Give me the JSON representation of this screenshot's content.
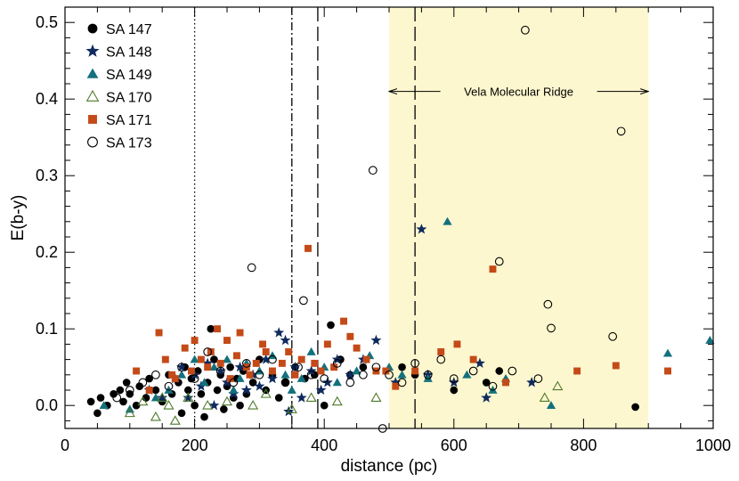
{
  "chart_data": {
    "type": "scatter",
    "xlabel": "distance (pc)",
    "ylabel": "E(b-y)",
    "xlim": [
      0,
      1000
    ],
    "ylim": [
      -0.03,
      0.52
    ],
    "xticks": [
      0,
      200,
      400,
      600,
      800,
      1000
    ],
    "yticks": [
      0.0,
      0.1,
      0.2,
      0.3,
      0.4,
      0.5
    ],
    "xtick_labels": [
      "0",
      "200",
      "400",
      "600",
      "800",
      "1000"
    ],
    "ytick_labels": [
      "0.0",
      "0.1",
      "0.2",
      "0.3",
      "0.4",
      "0.5"
    ],
    "legend_position": "top-left",
    "shaded_region": {
      "x": [
        500,
        900
      ],
      "color": "#fdf7cf"
    },
    "annotation": {
      "text": "Vela Molecular Ridge",
      "x_range": [
        500,
        900
      ],
      "y": 0.41
    },
    "vertical_lines": [
      {
        "x": 200,
        "style": "dotted"
      },
      {
        "x": 350,
        "style": "dashdot"
      },
      {
        "x": 390,
        "style": "longdash"
      },
      {
        "x": 540,
        "style": "longdash"
      }
    ],
    "series": [
      {
        "name": "SA 147",
        "marker": "circle-filled",
        "color": "#000000",
        "points": [
          [
            40,
            0.005
          ],
          [
            50,
            -0.01
          ],
          [
            55,
            0.01
          ],
          [
            65,
            0.0
          ],
          [
            75,
            0.015
          ],
          [
            85,
            0.02
          ],
          [
            90,
            0.005
          ],
          [
            95,
            0.03
          ],
          [
            100,
            0.015
          ],
          [
            110,
            0.0
          ],
          [
            115,
            0.025
          ],
          [
            125,
            0.01
          ],
          [
            130,
            0.035
          ],
          [
            140,
            0.02
          ],
          [
            150,
            0.005
          ],
          [
            160,
            0.04
          ],
          [
            165,
            0.015
          ],
          [
            175,
            0.03
          ],
          [
            180,
            -0.01
          ],
          [
            185,
            0.05
          ],
          [
            190,
            0.02
          ],
          [
            195,
            0.035
          ],
          [
            200,
            0.0
          ],
          [
            205,
            0.045
          ],
          [
            210,
            0.015
          ],
          [
            215,
            -0.015
          ],
          [
            220,
            0.03
          ],
          [
            225,
            0.1
          ],
          [
            230,
            0.06
          ],
          [
            235,
            0.02
          ],
          [
            240,
            0.04
          ],
          [
            245,
            -0.005
          ],
          [
            250,
            0.025
          ],
          [
            255,
            0.05
          ],
          [
            260,
            0.01
          ],
          [
            265,
            0.035
          ],
          [
            270,
            0.0
          ],
          [
            275,
            0.045
          ],
          [
            280,
            0.015
          ],
          [
            290,
            0.03
          ],
          [
            300,
            0.06
          ],
          [
            310,
            0.02
          ],
          [
            320,
            0.04
          ],
          [
            330,
            0.01
          ],
          [
            340,
            0.03
          ],
          [
            355,
            0.05
          ],
          [
            370,
            0.035
          ],
          [
            385,
            0.04
          ],
          [
            400,
            0.0
          ],
          [
            410,
            0.105
          ],
          [
            425,
            0.06
          ],
          [
            440,
            0.04
          ],
          [
            460,
            0.05
          ],
          [
            520,
            0.05
          ],
          [
            540,
            0.04
          ],
          [
            600,
            0.02
          ],
          [
            650,
            0.03
          ],
          [
            670,
            0.045
          ],
          [
            880,
            -0.002
          ]
        ]
      },
      {
        "name": "SA 148",
        "marker": "star-filled",
        "color": "#0e2a5e",
        "points": [
          [
            130,
            0.02
          ],
          [
            150,
            0.01
          ],
          [
            170,
            0.035
          ],
          [
            180,
            0.05
          ],
          [
            190,
            0.01
          ],
          [
            200,
            0.04
          ],
          [
            210,
            0.025
          ],
          [
            220,
            0.055
          ],
          [
            230,
            0.0
          ],
          [
            240,
            0.045
          ],
          [
            250,
            0.03
          ],
          [
            260,
            0.015
          ],
          [
            270,
            0.05
          ],
          [
            280,
            0.02
          ],
          [
            290,
            0.04
          ],
          [
            300,
            0.025
          ],
          [
            310,
            0.06
          ],
          [
            320,
            0.035
          ],
          [
            330,
            0.095
          ],
          [
            340,
            0.085
          ],
          [
            345,
            -0.008
          ],
          [
            355,
            0.05
          ],
          [
            365,
            0.01
          ],
          [
            380,
            0.045
          ],
          [
            395,
            0.02
          ],
          [
            405,
            0.03
          ],
          [
            420,
            0.06
          ],
          [
            440,
            0.04
          ],
          [
            460,
            0.06
          ],
          [
            480,
            0.085
          ],
          [
            510,
            0.03
          ],
          [
            550,
            0.23
          ],
          [
            560,
            0.04
          ],
          [
            600,
            0.03
          ],
          [
            640,
            0.055
          ],
          [
            650,
            0.01
          ],
          [
            720,
            0.03
          ]
        ]
      },
      {
        "name": "SA 149",
        "marker": "triangle-filled",
        "color": "#13717d",
        "points": [
          [
            60,
            0.0
          ],
          [
            100,
            -0.005
          ],
          [
            140,
            0.01
          ],
          [
            160,
            0.02
          ],
          [
            180,
            0.04
          ],
          [
            200,
            0.06
          ],
          [
            215,
            0.03
          ],
          [
            230,
            0.05
          ],
          [
            250,
            0.06
          ],
          [
            260,
            0.02
          ],
          [
            270,
            0.035
          ],
          [
            280,
            0.055
          ],
          [
            300,
            0.045
          ],
          [
            320,
            0.065
          ],
          [
            340,
            0.04
          ],
          [
            350,
            0.02
          ],
          [
            365,
            0.035
          ],
          [
            380,
            0.07
          ],
          [
            400,
            0.05
          ],
          [
            420,
            0.03
          ],
          [
            450,
            0.045
          ],
          [
            470,
            0.065
          ],
          [
            500,
            0.05
          ],
          [
            520,
            0.04
          ],
          [
            560,
            0.035
          ],
          [
            590,
            0.24
          ],
          [
            620,
            0.04
          ],
          [
            660,
            0.02
          ],
          [
            680,
            0.035
          ],
          [
            750,
            0.0
          ],
          [
            930,
            0.068
          ],
          [
            995,
            0.085
          ]
        ]
      },
      {
        "name": "SA 170",
        "marker": "triangle-open",
        "color": "#4f7a2b",
        "points": [
          [
            100,
            -0.01
          ],
          [
            120,
            0.005
          ],
          [
            140,
            -0.015
          ],
          [
            150,
            0.01
          ],
          [
            160,
            0.0
          ],
          [
            170,
            -0.02
          ],
          [
            190,
            0.01
          ],
          [
            220,
            0.0
          ],
          [
            250,
            0.005
          ],
          [
            290,
            0.0
          ],
          [
            310,
            0.015
          ],
          [
            350,
            -0.005
          ],
          [
            380,
            0.01
          ],
          [
            420,
            0.005
          ],
          [
            480,
            0.01
          ],
          [
            740,
            0.01
          ],
          [
            760,
            0.025
          ]
        ]
      },
      {
        "name": "SA 171",
        "marker": "square-filled",
        "color": "#c44a18",
        "points": [
          [
            110,
            0.045
          ],
          [
            130,
            0.02
          ],
          [
            145,
            0.095
          ],
          [
            155,
            0.06
          ],
          [
            165,
            0.04
          ],
          [
            170,
            0.035
          ],
          [
            185,
            0.075
          ],
          [
            195,
            0.045
          ],
          [
            200,
            0.085
          ],
          [
            210,
            0.06
          ],
          [
            220,
            0.05
          ],
          [
            225,
            0.07
          ],
          [
            235,
            0.1
          ],
          [
            240,
            0.055
          ],
          [
            250,
            0.085
          ],
          [
            255,
            0.035
          ],
          [
            265,
            0.065
          ],
          [
            270,
            0.095
          ],
          [
            280,
            0.05
          ],
          [
            285,
            0.04
          ],
          [
            295,
            0.055
          ],
          [
            305,
            0.08
          ],
          [
            310,
            0.07
          ],
          [
            320,
            0.045
          ],
          [
            335,
            0.055
          ],
          [
            345,
            0.07
          ],
          [
            355,
            0.04
          ],
          [
            365,
            0.06
          ],
          [
            375,
            0.205
          ],
          [
            385,
            0.055
          ],
          [
            395,
            0.045
          ],
          [
            405,
            0.08
          ],
          [
            415,
            0.05
          ],
          [
            430,
            0.11
          ],
          [
            440,
            0.09
          ],
          [
            450,
            0.075
          ],
          [
            465,
            0.06
          ],
          [
            480,
            0.045
          ],
          [
            495,
            0.045
          ],
          [
            510,
            0.025
          ],
          [
            540,
            0.045
          ],
          [
            580,
            0.07
          ],
          [
            605,
            0.08
          ],
          [
            630,
            0.06
          ],
          [
            660,
            0.178
          ],
          [
            680,
            0.03
          ],
          [
            790,
            0.045
          ],
          [
            850,
            0.052
          ],
          [
            930,
            0.045
          ]
        ]
      },
      {
        "name": "SA 173",
        "marker": "circle-open",
        "color": "#000000",
        "points": [
          [
            80,
            0.01
          ],
          [
            100,
            0.02
          ],
          [
            120,
            0.03
          ],
          [
            140,
            0.04
          ],
          [
            160,
            0.025
          ],
          [
            180,
            0.05
          ],
          [
            200,
            0.035
          ],
          [
            220,
            0.07
          ],
          [
            240,
            0.045
          ],
          [
            260,
            0.03
          ],
          [
            280,
            0.055
          ],
          [
            288,
            0.18
          ],
          [
            300,
            0.04
          ],
          [
            320,
            0.06
          ],
          [
            340,
            0.03
          ],
          [
            360,
            0.05
          ],
          [
            368,
            0.137
          ],
          [
            380,
            0.04
          ],
          [
            400,
            0.035
          ],
          [
            420,
            0.055
          ],
          [
            440,
            0.03
          ],
          [
            460,
            0.04
          ],
          [
            475,
            0.307
          ],
          [
            480,
            0.05
          ],
          [
            490,
            -0.03
          ],
          [
            500,
            0.04
          ],
          [
            520,
            0.03
          ],
          [
            540,
            0.055
          ],
          [
            560,
            0.04
          ],
          [
            580,
            0.06
          ],
          [
            600,
            0.035
          ],
          [
            630,
            0.045
          ],
          [
            660,
            0.025
          ],
          [
            670,
            0.188
          ],
          [
            690,
            0.045
          ],
          [
            710,
            0.49
          ],
          [
            730,
            0.035
          ],
          [
            745,
            0.132
          ],
          [
            750,
            0.101
          ],
          [
            845,
            0.09
          ],
          [
            858,
            0.358
          ]
        ]
      }
    ]
  }
}
